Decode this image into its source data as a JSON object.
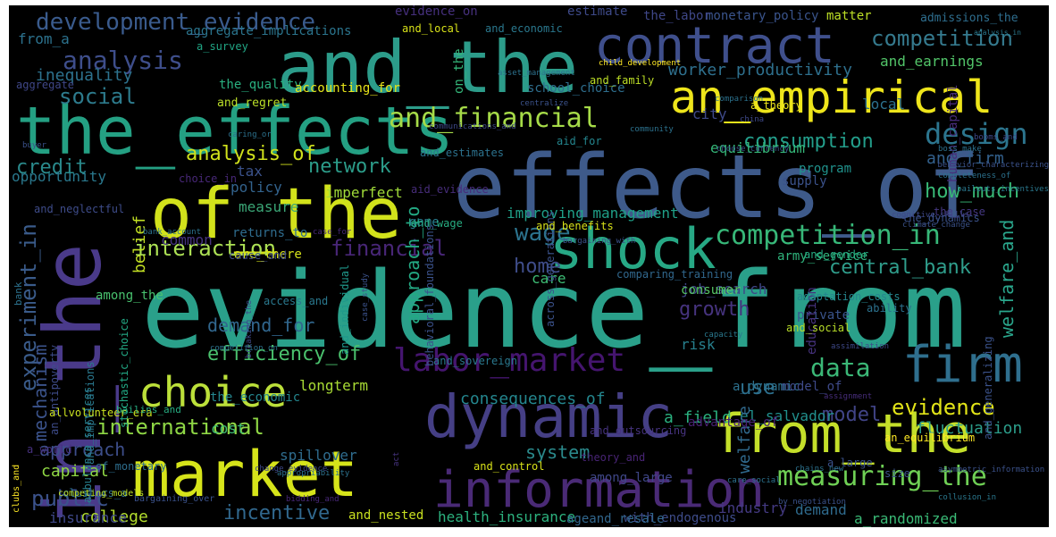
{
  "words": [
    {
      "text": "evidence_from",
      "color": "#2aa08a"
    },
    {
      "text": "effects_of",
      "color": "#3e5a8a"
    },
    {
      "text": "and_the",
      "color": "#2c9c8a"
    },
    {
      "text": "of_the",
      "color": "#d2e21b"
    },
    {
      "text": "in_the",
      "color": "#4a3a8a"
    },
    {
      "text": "the_effects",
      "color": "#24a083"
    },
    {
      "text": "market",
      "color": "#d6e41a"
    },
    {
      "text": "contract",
      "color": "#3f4f8c"
    },
    {
      "text": "dynamic",
      "color": "#453f85"
    },
    {
      "text": "from_the",
      "color": "#c4df2a"
    },
    {
      "text": "information",
      "color": "#4a2a76"
    },
    {
      "text": "an_empirical",
      "color": "#eee51b"
    },
    {
      "text": "shock",
      "color": "#27a885"
    },
    {
      "text": "choice",
      "color": "#bce03a"
    },
    {
      "text": "firm",
      "color": "#2f6f8e"
    },
    {
      "text": "labor_market",
      "color": "#45156f"
    },
    {
      "text": "and_financial",
      "color": "#a6db48"
    },
    {
      "text": "development_evidence",
      "color": "#3a5b8d"
    },
    {
      "text": "competition_in",
      "color": "#37b778"
    },
    {
      "text": "measuring_the",
      "color": "#6fd055"
    },
    {
      "text": "design",
      "color": "#2c758e"
    },
    {
      "text": "analysis",
      "color": "#3e4e8b"
    },
    {
      "text": "competition",
      "color": "#357a8e"
    },
    {
      "text": "consumption",
      "color": "#239e8b"
    },
    {
      "text": "analysis_of",
      "color": "#d0e11c"
    },
    {
      "text": "interaction",
      "color": "#ace054"
    },
    {
      "text": "international",
      "color": "#8ed645"
    },
    {
      "text": "central_bank",
      "color": "#2f9d8b"
    },
    {
      "text": "network",
      "color": "#2c9d8a"
    },
    {
      "text": "experiment_in",
      "color": "#3a5b8a"
    },
    {
      "text": "worker_productivity",
      "color": "#2e708e"
    },
    {
      "text": "how_much",
      "color": "#38b976"
    },
    {
      "text": "social",
      "color": "#2d7b8d"
    },
    {
      "text": "credit",
      "color": "#2a8a8c"
    },
    {
      "text": "data",
      "color": "#3bb877"
    },
    {
      "text": "wage",
      "color": "#2c738e"
    },
    {
      "text": "home",
      "color": "#3f4d8a"
    },
    {
      "text": "financial",
      "color": "#482677"
    },
    {
      "text": "demand_for",
      "color": "#31678e"
    },
    {
      "text": "growth",
      "color": "#46337e"
    },
    {
      "text": "evidence",
      "color": "#e2e418"
    },
    {
      "text": "welfare_and",
      "color": "#2aa68c"
    },
    {
      "text": "public",
      "color": "#3b528b"
    },
    {
      "text": "incentive",
      "color": "#31688e"
    },
    {
      "text": "system",
      "color": "#2b8a8c"
    },
    {
      "text": "model",
      "color": "#414487"
    },
    {
      "text": "use",
      "color": "#2d708e"
    },
    {
      "text": "and_earnings",
      "color": "#52c569"
    },
    {
      "text": "approach_to",
      "color": "#23a983"
    },
    {
      "text": "capital",
      "color": "#8fd744"
    },
    {
      "text": "approach",
      "color": "#3d4e8a"
    },
    {
      "text": "college",
      "color": "#b2dd2d"
    },
    {
      "text": "equilibrium",
      "color": "#35b779"
    },
    {
      "text": "consequences_of",
      "color": "#24868e"
    },
    {
      "text": "a_field",
      "color": "#2ab07f"
    },
    {
      "text": "el_salvador",
      "color": "#21908d"
    },
    {
      "text": "fluctuation",
      "color": "#2c9e8b"
    },
    {
      "text": "mechanism",
      "color": "#3b538b"
    },
    {
      "text": "efficiency_of",
      "color": "#4ac16d"
    },
    {
      "text": "estimate",
      "color": "#3e4a89"
    },
    {
      "text": "evidence_on",
      "color": "#46307e"
    },
    {
      "text": "inequality",
      "color": "#2d728e"
    },
    {
      "text": "and_firm",
      "color": "#33618d"
    },
    {
      "text": "belief",
      "color": "#c2df23"
    },
    {
      "text": "common",
      "color": "#46337f"
    },
    {
      "text": "tax",
      "color": "#3b528b"
    },
    {
      "text": "policy",
      "color": "#33638d"
    },
    {
      "text": "imperfect",
      "color": "#a0da39"
    },
    {
      "text": "measure",
      "color": "#3ba676"
    },
    {
      "text": "game",
      "color": "#287d8e"
    },
    {
      "text": "opportunity",
      "color": "#2a798e"
    },
    {
      "text": "improving_management",
      "color": "#1fa088"
    },
    {
      "text": "care",
      "color": "#3dbc74"
    },
    {
      "text": "job_search",
      "color": "#3f4788"
    },
    {
      "text": "consumer",
      "color": "#57c665"
    },
    {
      "text": "program",
      "color": "#20928c"
    },
    {
      "text": "private",
      "color": "#3a548c"
    },
    {
      "text": "risk",
      "color": "#27808e"
    },
    {
      "text": "welfare",
      "color": "#306a8e"
    },
    {
      "text": "cost",
      "color": "#3fbc73"
    },
    {
      "text": "spillover",
      "color": "#2f6c8e"
    },
    {
      "text": "insurance",
      "color": "#3f4889"
    },
    {
      "text": "demand",
      "color": "#2f6b8e"
    },
    {
      "text": "industry",
      "color": "#443a83"
    },
    {
      "text": "a_randomized",
      "color": "#3aba76"
    },
    {
      "text": "health_insurance",
      "color": "#2cb17e"
    },
    {
      "text": "with_endogenous",
      "color": "#3e4c8a"
    },
    {
      "text": "and_nested",
      "color": "#c8e020"
    },
    {
      "text": "ageand_resale",
      "color": "#31678e"
    },
    {
      "text": "matter",
      "color": "#bddf26"
    },
    {
      "text": "monetary_policy",
      "color": "#3a548c"
    },
    {
      "text": "the_labor",
      "color": "#3f4788"
    },
    {
      "text": "admissions_the",
      "color": "#2e6e8e"
    },
    {
      "text": "aggregate_implications",
      "color": "#2b758e"
    },
    {
      "text": "from_a",
      "color": "#2c728e"
    },
    {
      "text": "a_survey",
      "color": "#21a685"
    },
    {
      "text": "the_quality",
      "color": "#29af7f"
    },
    {
      "text": "accounting_for",
      "color": "#e7e419"
    },
    {
      "text": "and_regret",
      "color": "#bade28"
    },
    {
      "text": "school_choice",
      "color": "#2e6e8e"
    },
    {
      "text": "city",
      "color": "#3e4989"
    },
    {
      "text": "local",
      "color": "#2c718e"
    },
    {
      "text": "supply",
      "color": "#3b528b"
    },
    {
      "text": "a_theory",
      "color": "#ece51b"
    },
    {
      "text": "human_capital",
      "color": "#472c7a"
    },
    {
      "text": "on_the",
      "color": "#34b679"
    },
    {
      "text": "and_local",
      "color": "#d8e219"
    },
    {
      "text": "and_economic",
      "color": "#2a788e"
    },
    {
      "text": "and_family",
      "color": "#bddf26"
    },
    {
      "text": "aggregate",
      "color": "#3f4788"
    },
    {
      "text": "returns_to",
      "color": "#2f6c8e"
    },
    {
      "text": "army_service",
      "color": "#2fb47c"
    },
    {
      "text": "stochastic_choice",
      "color": "#22a884"
    },
    {
      "text": "among_the",
      "color": "#48c16e"
    },
    {
      "text": "an_antipoverty",
      "color": "#3e4c8a"
    },
    {
      "text": "ambulance_services",
      "color": "#27808e"
    },
    {
      "text": "and_implications",
      "color": "#2a788e"
    },
    {
      "text": "are_there",
      "color": "#d5e21a"
    },
    {
      "text": "a_world",
      "color": "#46307e"
    },
    {
      "text": "clusters_a",
      "color": "#2e6f8e"
    },
    {
      "text": "longterm",
      "color": "#a8db34"
    },
    {
      "text": "the_economic",
      "color": "#24868e"
    },
    {
      "text": "education",
      "color": "#46327e"
    },
    {
      "text": "a_dynamic",
      "color": "#2d718e"
    },
    {
      "text": "model_of",
      "color": "#3e4a89"
    },
    {
      "text": "advantage_of",
      "color": "#482173"
    },
    {
      "text": "among_large",
      "color": "#3f4788"
    },
    {
      "text": "and_control",
      "color": "#d8e219"
    },
    {
      "text": "theory_and",
      "color": "#482475"
    },
    {
      "text": "of_monetary",
      "color": "#2e6e8e"
    },
    {
      "text": "allvolunteer_era",
      "color": "#cae11f"
    },
    {
      "text": "a_large",
      "color": "#3b528b"
    },
    {
      "text": "size",
      "color": "#3b528b"
    },
    {
      "text": "an_equilibrium",
      "color": "#fde725"
    },
    {
      "text": "and_gender",
      "color": "#25ac82"
    },
    {
      "text": "adaptation_costs",
      "color": "#24868e"
    },
    {
      "text": "ability",
      "color": "#2c728e"
    },
    {
      "text": "the_dynamics",
      "color": "#3b528b"
    },
    {
      "text": "the_case",
      "color": "#453882"
    },
    {
      "text": "comparing_training",
      "color": "#31688e"
    },
    {
      "text": "and_individual",
      "color": "#1f988b"
    },
    {
      "text": "and_outsourcing",
      "color": "#46337f"
    },
    {
      "text": "and_generalizing",
      "color": "#3b528b"
    },
    {
      "text": "access_and",
      "color": "#2a788e"
    },
    {
      "text": "and_social",
      "color": "#b8de29"
    },
    {
      "text": "aid_for",
      "color": "#24868e"
    },
    {
      "text": "aid_evidence",
      "color": "#472d7b"
    },
    {
      "text": "and_estimates",
      "color": "#2c728e"
    },
    {
      "text": "across_generations",
      "color": "#3b528b"
    },
    {
      "text": "and_wage",
      "color": "#27ad81"
    },
    {
      "text": "and_benefits",
      "color": "#d8e219"
    },
    {
      "text": "behavioral_foundations",
      "color": "#3b528b"
    },
    {
      "text": "and_sovereign",
      "color": "#2a788e"
    },
    {
      "text": "cause_and",
      "color": "#3e4989"
    },
    {
      "text": "choice_in",
      "color": "#482878"
    },
    {
      "text": "and_neglectful",
      "color": "#3e4c8a"
    },
    {
      "text": "bank",
      "color": "#2c728e"
    },
    {
      "text": "bailins_and",
      "color": "#27ad81"
    },
    {
      "text": "clubs_and",
      "color": "#fde725"
    },
    {
      "text": "competing_models",
      "color": "#bddf26"
    },
    {
      "text": "bargaining_over",
      "color": "#3b528b"
    },
    {
      "text": "bidding_and",
      "color": "#482878"
    },
    {
      "text": "change_evidence",
      "color": "#3e4989"
    },
    {
      "text": "care_social",
      "color": "#2c728e"
    },
    {
      "text": "by_negotiation",
      "color": "#3b528b"
    },
    {
      "text": "collusion_in",
      "color": "#2a788e"
    },
    {
      "text": "asymmetric_information",
      "color": "#3b528b"
    },
    {
      "text": "chains_new",
      "color": "#2c728e"
    },
    {
      "text": "assimilation",
      "color": "#3e4989"
    },
    {
      "text": "assignment",
      "color": "#472d7b"
    },
    {
      "text": "capacity",
      "color": "#2a788e"
    },
    {
      "text": "act",
      "color": "#46337f"
    },
    {
      "text": "appropriability",
      "color": "#2c728e"
    },
    {
      "text": "bargaining_with",
      "color": "#3b528b"
    },
    {
      "text": "case_study",
      "color": "#3b528b"
    },
    {
      "text": "competition_on",
      "color": "#2c728e"
    },
    {
      "text": "breaking_the",
      "color": "#3e4989"
    },
    {
      "text": "bank_account",
      "color": "#2c728e"
    },
    {
      "text": "case_for",
      "color": "#482878"
    },
    {
      "text": "climate_change",
      "color": "#3b528b"
    },
    {
      "text": "completeness_of",
      "color": "#2c728e"
    },
    {
      "text": "cognitive_skills",
      "color": "#3e4989"
    },
    {
      "text": "bailouts_incentives",
      "color": "#2a788e"
    },
    {
      "text": "behavior_characterizing",
      "color": "#3b528b"
    },
    {
      "text": "boss_make",
      "color": "#2c728e"
    },
    {
      "text": "booms_and",
      "color": "#3e4989"
    },
    {
      "text": "choose_currency",
      "color": "#3b528b"
    },
    {
      "text": "community",
      "color": "#2c728e"
    },
    {
      "text": "communications_and",
      "color": "#3e4989"
    },
    {
      "text": "caring_or",
      "color": "#2c728e"
    },
    {
      "text": "buyer",
      "color": "#3b528b"
    },
    {
      "text": "china",
      "color": "#3e4989"
    },
    {
      "text": "comparison",
      "color": "#2c728e"
    },
    {
      "text": "centralize",
      "color": "#3b528b"
    },
    {
      "text": "child_development",
      "color": "#fde725"
    },
    {
      "text": "asset_management",
      "color": "#2c728e"
    },
    {
      "text": "analysis_in",
      "color": "#2a788e"
    }
  ]
}
